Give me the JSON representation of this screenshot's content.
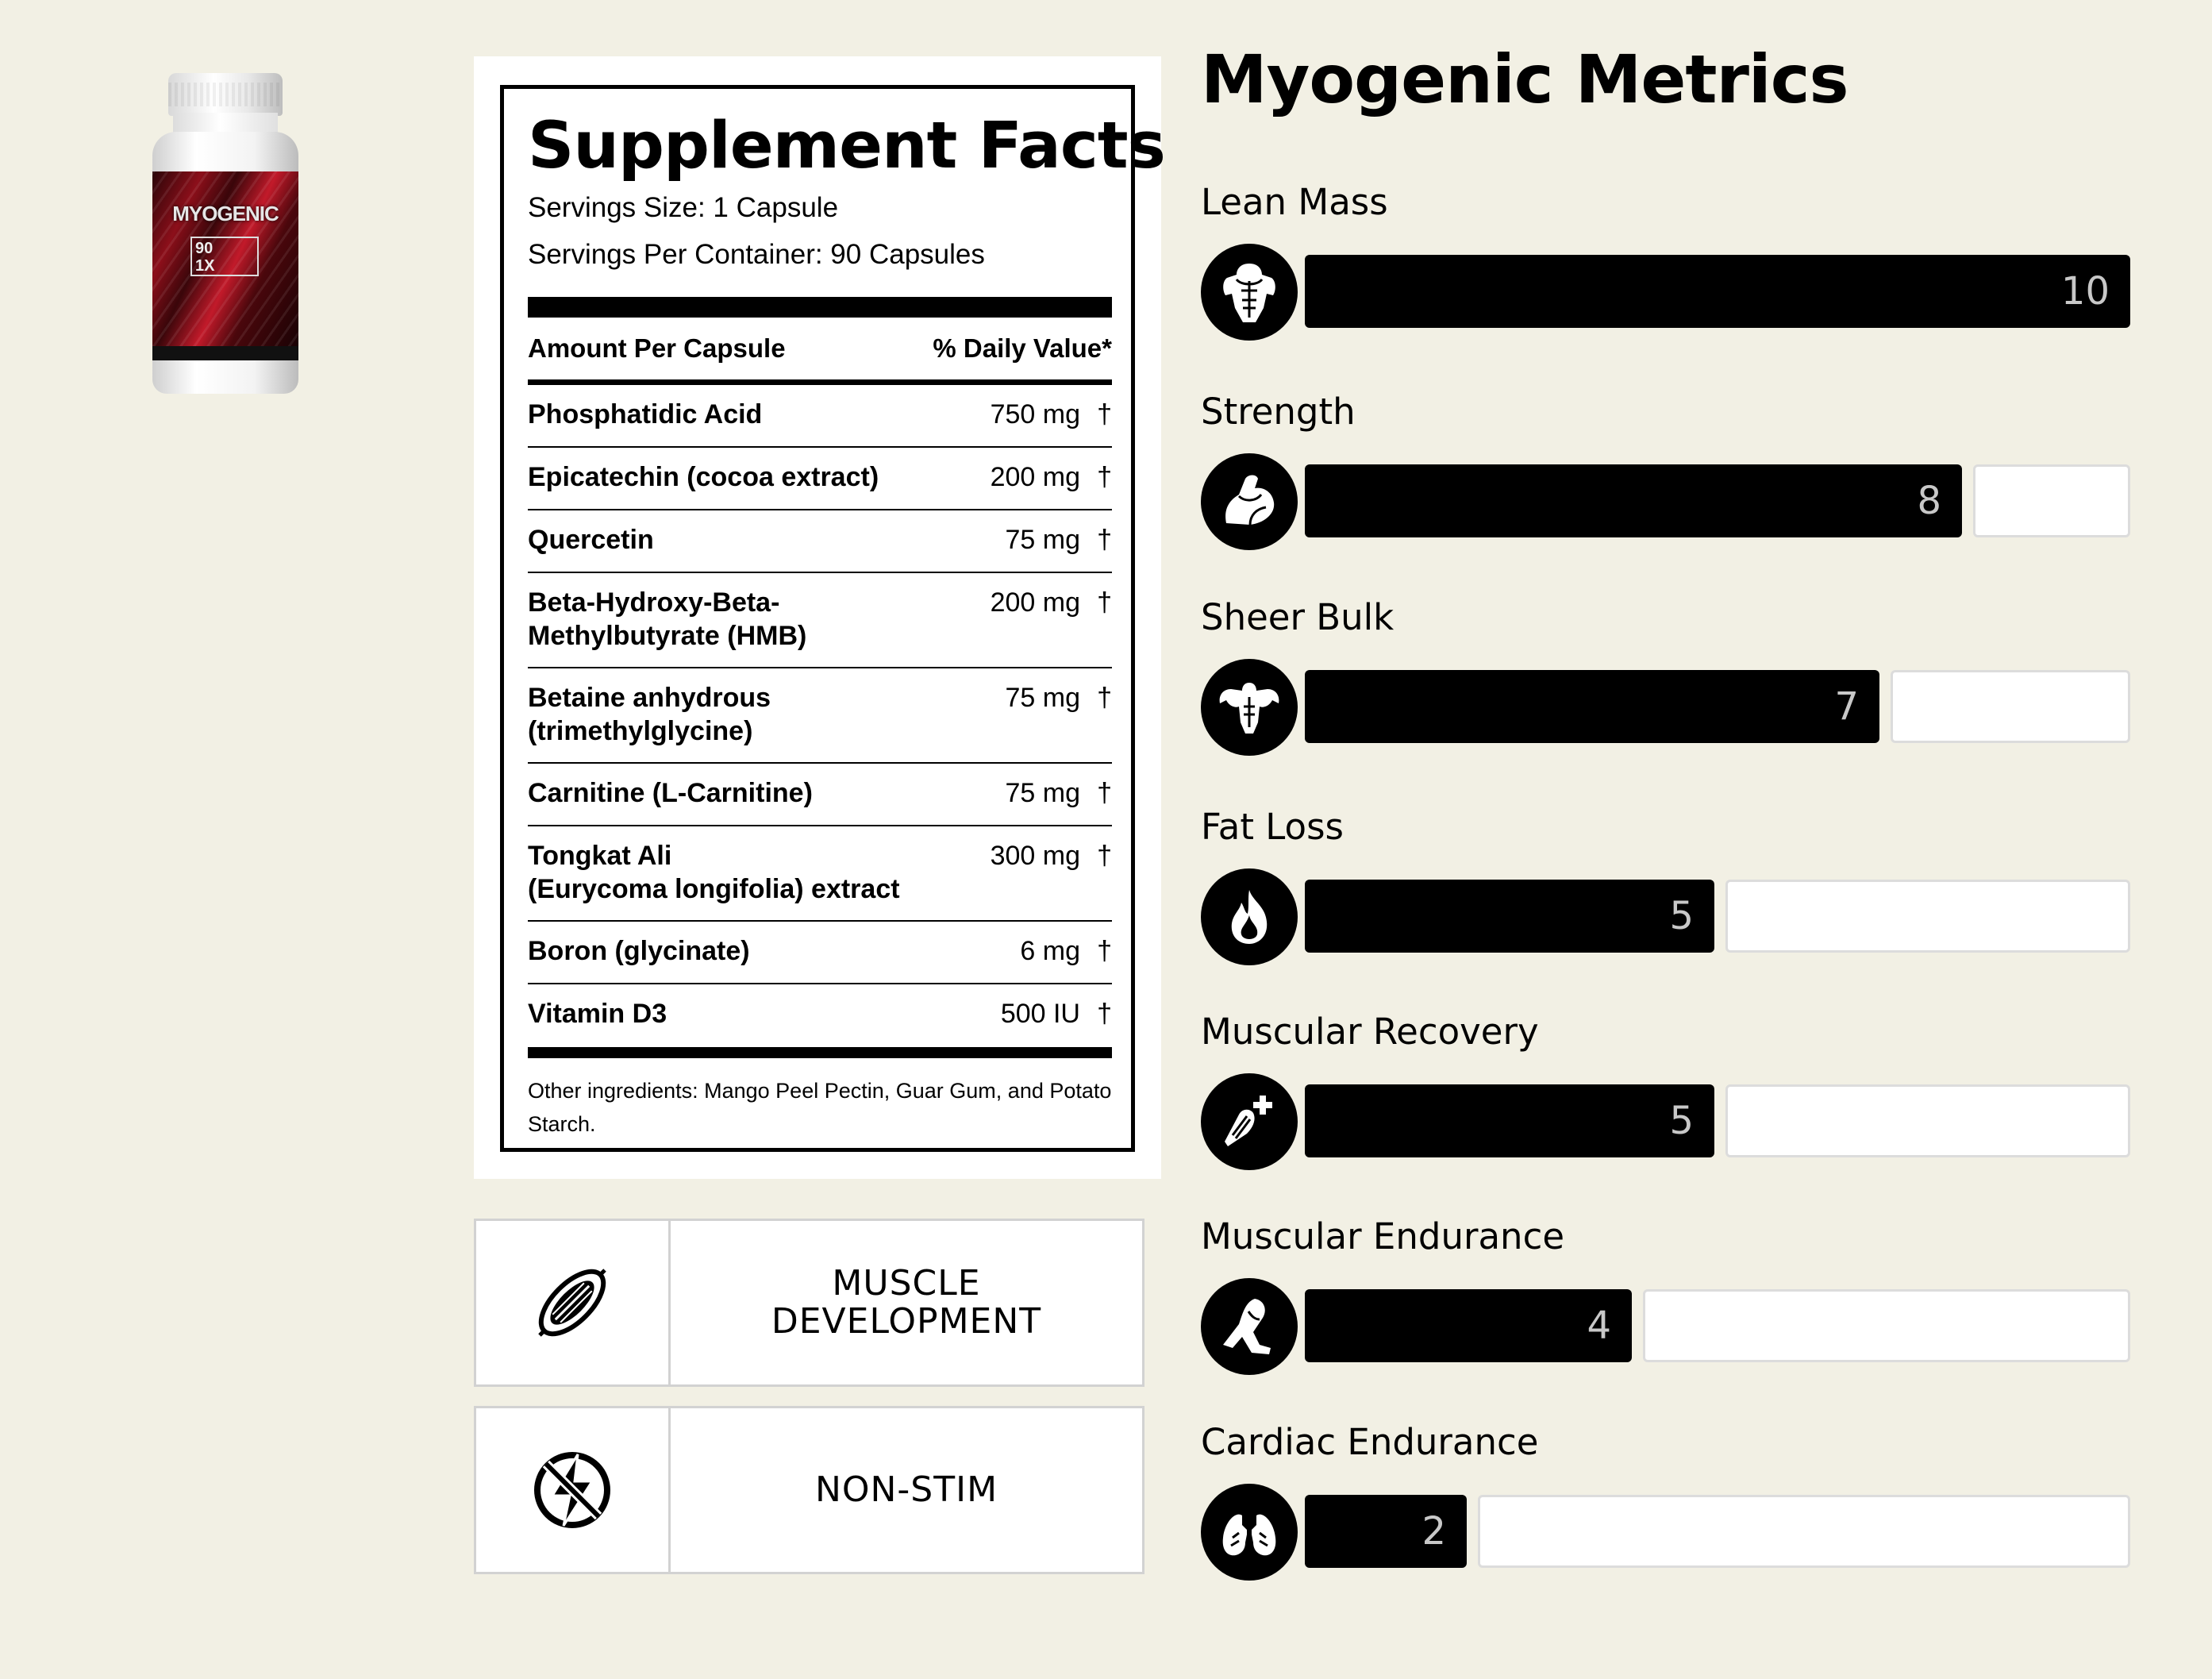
{
  "product": {
    "brand_text": "MYOGENIC",
    "badge_count": "90",
    "badge_serving": "1X"
  },
  "facts": {
    "title": "Supplement Facts",
    "serving_size": "Servings Size: 1 Capsule",
    "servings_per_container": "Servings Per Container: 90 Capsules",
    "header_amount": "Amount Per Capsule",
    "header_dv": "% Daily Value*",
    "rows": [
      {
        "name": "Phosphatidic Acid",
        "amount": "750 mg",
        "dv": "†"
      },
      {
        "name": "Epicatechin (cocoa extract)",
        "amount": "200 mg",
        "dv": "†"
      },
      {
        "name": "Quercetin",
        "amount": "75 mg",
        "dv": "†"
      },
      {
        "name": "Beta-Hydroxy-Beta-\nMethylbutyrate (HMB)",
        "amount": "200 mg",
        "dv": "†"
      },
      {
        "name": "Betaine anhydrous\n(trimethylglycine)",
        "amount": "75 mg",
        "dv": "†"
      },
      {
        "name": "Carnitine (L-Carnitine)",
        "amount": "75 mg",
        "dv": "†"
      },
      {
        "name": "Tongkat Ali\n(Eurycoma longifolia) extract",
        "amount": "300 mg",
        "dv": "†"
      },
      {
        "name": "Boron (glycinate)",
        "amount": "6 mg",
        "dv": "†"
      },
      {
        "name": "Vitamin D3",
        "amount": "500 IU",
        "dv": "†"
      }
    ],
    "other_ingredients": "Other ingredients: Mango Peel Pectin, Guar Gum, and Potato Starch."
  },
  "features": [
    {
      "label": "MUSCLE\nDEVELOPMENT",
      "icon": "muscle-fiber-icon"
    },
    {
      "label": "NON-STIM",
      "icon": "no-stimulant-icon"
    }
  ],
  "metrics": {
    "title": "Myogenic Metrics",
    "max": 10,
    "items": [
      {
        "label": "Lean Mass",
        "value": 10,
        "icon": "torso-icon"
      },
      {
        "label": "Strength",
        "value": 8,
        "icon": "flexed-arm-icon"
      },
      {
        "label": "Sheer Bulk",
        "value": 7,
        "icon": "bodybuilder-icon"
      },
      {
        "label": "Fat Loss",
        "value": 5,
        "icon": "flame-icon"
      },
      {
        "label": "Muscular Recovery",
        "value": 5,
        "icon": "muscle-plus-icon"
      },
      {
        "label": "Muscular Endurance",
        "value": 4,
        "icon": "running-leg-icon"
      },
      {
        "label": "Cardiac Endurance",
        "value": 2,
        "icon": "lungs-icon"
      }
    ]
  }
}
